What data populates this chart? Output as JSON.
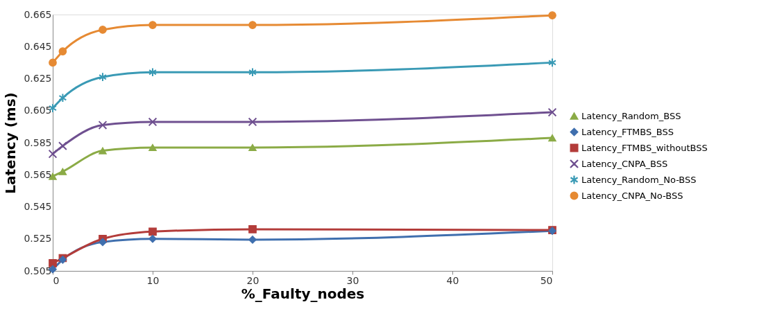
{
  "chart_data": {
    "type": "line",
    "xlabel": "%_Faulty_nodes",
    "ylabel": "Latency (ms)",
    "x": [
      0,
      1,
      5,
      10,
      20,
      50
    ],
    "xlim": [
      0,
      50
    ],
    "xticks": [
      0,
      10,
      20,
      30,
      40,
      50
    ],
    "ylim": [
      0.505,
      0.665
    ],
    "yticks": [
      0.505,
      0.525,
      0.545,
      0.565,
      0.585,
      0.605,
      0.625,
      0.645,
      0.665
    ],
    "grid": false,
    "legend": "right",
    "line_style": "solid",
    "series": [
      {
        "name": "Latency_Random_BSS",
        "color": "#8bab46",
        "marker": "triangle",
        "values": [
          0.564,
          0.567,
          0.58,
          0.582,
          0.582,
          0.588
        ]
      },
      {
        "name": "Latency_FTMBS_BSS",
        "color": "#3f6fae",
        "marker": "diamond",
        "values": [
          0.506,
          0.512,
          0.523,
          0.525,
          0.5245,
          0.53
        ]
      },
      {
        "name": "Latency_FTMBS_withoutBSS",
        "color": "#b33c3a",
        "marker": "square",
        "values": [
          0.5098,
          0.513,
          0.525,
          0.5295,
          0.531,
          0.5305
        ]
      },
      {
        "name": "Latency_CNPA_BSS",
        "color": "#6f5090",
        "marker": "cross",
        "values": [
          0.578,
          0.583,
          0.596,
          0.598,
          0.598,
          0.604
        ]
      },
      {
        "name": "Latency_Random_No-BSS",
        "color": "#3a9ab5",
        "marker": "star",
        "values": [
          0.6066,
          0.613,
          0.626,
          0.629,
          0.629,
          0.635
        ]
      },
      {
        "name": "Latency_CNPA_No-BSS",
        "color": "#e68a33",
        "marker": "circle",
        "values": [
          0.635,
          0.642,
          0.6555,
          0.6585,
          0.6585,
          0.6645
        ]
      }
    ]
  }
}
